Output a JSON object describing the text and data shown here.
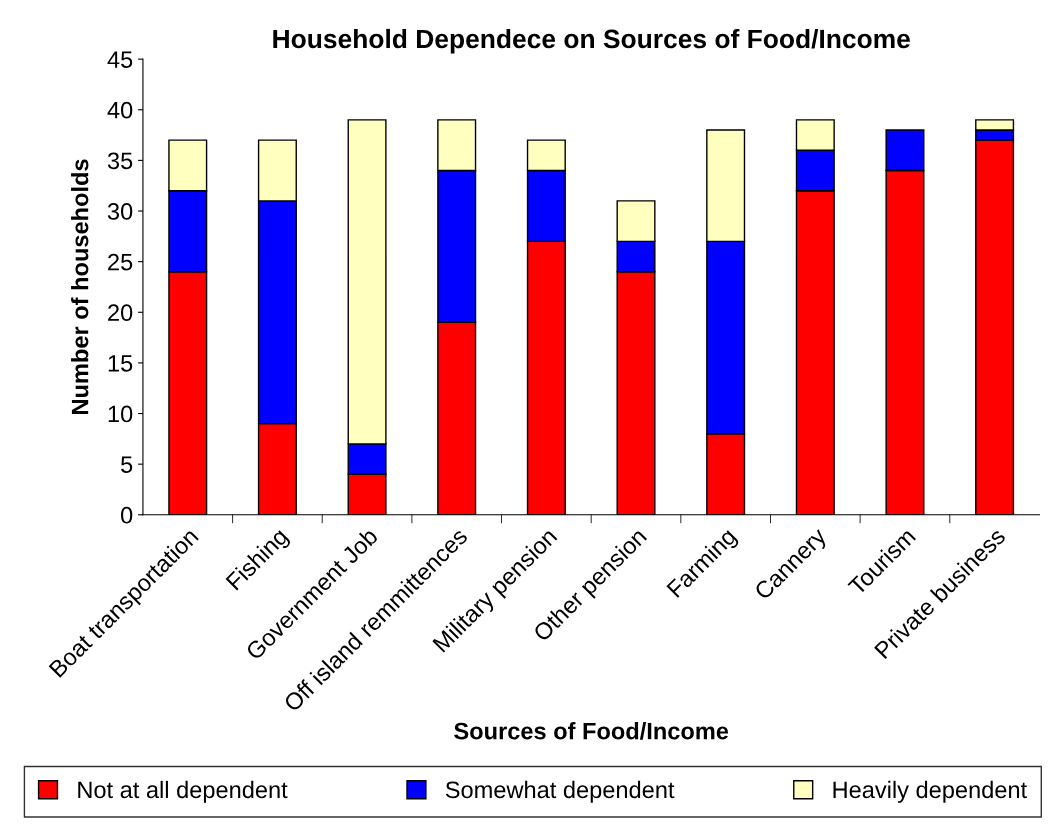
{
  "chart_data": {
    "type": "bar",
    "title": "Household Dependece on Sources of Food/Income",
    "xlabel": "Sources of Food/Income",
    "ylabel": "Number of households",
    "categories": [
      "Boat transportation",
      "Fishing",
      "Government Job",
      "Off island remmittences",
      "Military pension",
      "Other pension",
      "Farming",
      "Cannery",
      "Tourism",
      "Private business"
    ],
    "stacked": true,
    "series": [
      {
        "name": "Not at all dependent",
        "color": "#ff0000",
        "values": [
          24,
          9,
          4,
          19,
          27,
          24,
          8,
          32,
          34,
          37
        ]
      },
      {
        "name": "Somewhat dependent",
        "color": "#0000ff",
        "values": [
          8,
          22,
          3,
          15,
          7,
          3,
          19,
          4,
          4,
          1
        ]
      },
      {
        "name": "Heavily dependent",
        "color": "#ffffc0",
        "values": [
          5,
          6,
          32,
          5,
          3,
          4,
          11,
          3,
          null,
          1
        ]
      }
    ],
    "ylim": [
      0,
      45
    ],
    "yticks": [
      0,
      5,
      10,
      15,
      20,
      25,
      30,
      35,
      40,
      45
    ],
    "grid": false,
    "legend": "bottom"
  }
}
